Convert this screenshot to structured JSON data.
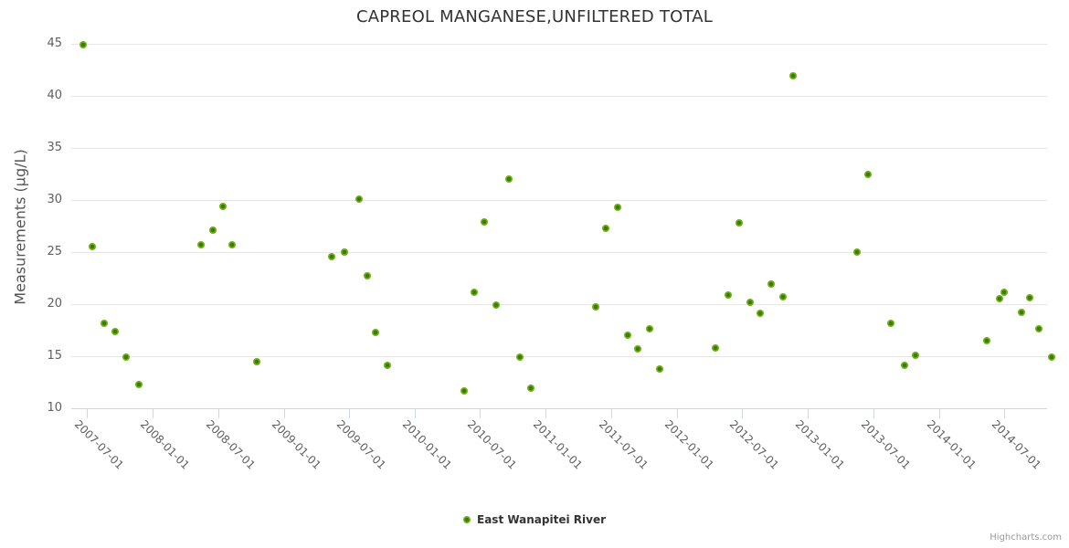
{
  "chart": {
    "title": "CAPREOL MANGANESE,UNFILTERED TOTAL",
    "credits": "Highcharts.com",
    "legend_label": "East Wanapitei River"
  },
  "colors": {
    "series_outer": "#6db217",
    "series_inner": "#3e7a04",
    "gridline": "#e6e6e6",
    "axis_line": "#ccd6eb",
    "title_text": "#333333",
    "axis_label_text": "#606060",
    "credits_text": "#999999"
  },
  "chart_data": {
    "type": "scatter",
    "title": "CAPREOL MANGANESE,UNFILTERED TOTAL",
    "xlabel": "",
    "ylabel": "Measurements (µg/L)",
    "ylim": [
      10,
      45
    ],
    "grid": true,
    "legend_position": "bottom",
    "y_ticks": [
      10,
      15,
      20,
      25,
      30,
      35,
      40,
      45
    ],
    "x_ticks": [
      "2007-07-01",
      "2008-01-01",
      "2008-07-01",
      "2009-01-01",
      "2009-07-01",
      "2010-01-01",
      "2010-07-01",
      "2011-01-01",
      "2011-07-01",
      "2012-01-01",
      "2012-07-01",
      "2013-01-01",
      "2013-07-01",
      "2014-01-01",
      "2014-07-01"
    ],
    "series": [
      {
        "name": "East Wanapitei River",
        "color": "#6db217",
        "points": [
          [
            "2007-06-21",
            44.9
          ],
          [
            "2007-07-17",
            25.5
          ],
          [
            "2007-08-18",
            18.2
          ],
          [
            "2007-09-18",
            17.4
          ],
          [
            "2007-10-18",
            14.9
          ],
          [
            "2007-11-22",
            12.3
          ],
          [
            "2008-05-14",
            25.7
          ],
          [
            "2008-06-16",
            27.1
          ],
          [
            "2008-07-15",
            29.4
          ],
          [
            "2008-08-08",
            25.7
          ],
          [
            "2008-10-16",
            14.5
          ],
          [
            "2009-05-13",
            24.6
          ],
          [
            "2009-06-18",
            25.0
          ],
          [
            "2009-07-28",
            30.1
          ],
          [
            "2009-08-21",
            22.7
          ],
          [
            "2009-09-14",
            17.3
          ],
          [
            "2009-10-15",
            14.1
          ],
          [
            "2010-05-19",
            11.7
          ],
          [
            "2010-06-16",
            21.1
          ],
          [
            "2010-07-14",
            27.9
          ],
          [
            "2010-08-15",
            19.9
          ],
          [
            "2010-09-20",
            32.0
          ],
          [
            "2010-10-21",
            14.9
          ],
          [
            "2010-11-21",
            11.9
          ],
          [
            "2011-05-19",
            19.7
          ],
          [
            "2011-06-16",
            27.3
          ],
          [
            "2011-07-19",
            29.3
          ],
          [
            "2011-08-17",
            17.0
          ],
          [
            "2011-09-14",
            15.7
          ],
          [
            "2011-10-17",
            17.6
          ],
          [
            "2011-11-13",
            13.8
          ],
          [
            "2012-04-18",
            15.8
          ],
          [
            "2012-05-23",
            20.9
          ],
          [
            "2012-06-22",
            27.8
          ],
          [
            "2012-07-24",
            20.2
          ],
          [
            "2012-08-21",
            19.1
          ],
          [
            "2012-09-19",
            21.9
          ],
          [
            "2012-10-24",
            20.7
          ],
          [
            "2012-11-20",
            41.9
          ],
          [
            "2013-05-17",
            25.0
          ],
          [
            "2013-06-17",
            32.5
          ],
          [
            "2013-08-20",
            18.2
          ],
          [
            "2013-09-26",
            14.1
          ],
          [
            "2013-10-28",
            15.1
          ],
          [
            "2014-05-14",
            16.5
          ],
          [
            "2014-06-19",
            20.5
          ],
          [
            "2014-07-02",
            21.1
          ],
          [
            "2014-08-20",
            19.2
          ],
          [
            "2014-09-11",
            20.6
          ],
          [
            "2014-10-07",
            17.6
          ],
          [
            "2014-11-12",
            14.9
          ]
        ]
      }
    ]
  }
}
